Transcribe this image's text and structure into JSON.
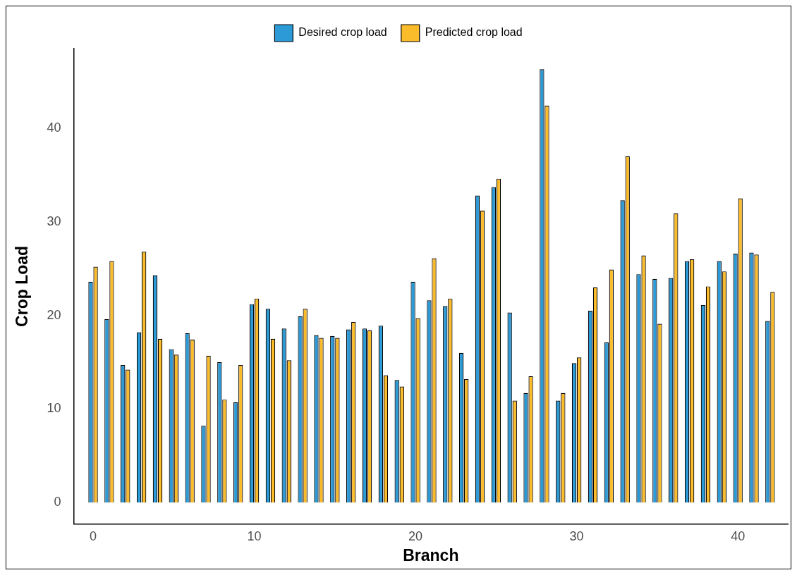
{
  "chart_data": {
    "type": "bar",
    "xlabel": "Branch",
    "ylabel": "Crop Load",
    "x": [
      0,
      1,
      2,
      3,
      4,
      5,
      6,
      7,
      8,
      9,
      10,
      11,
      12,
      13,
      14,
      15,
      16,
      17,
      18,
      19,
      20,
      21,
      22,
      23,
      24,
      25,
      26,
      27,
      28,
      29,
      30,
      31,
      32,
      33,
      34,
      35,
      36,
      37,
      38,
      39,
      40,
      41,
      42
    ],
    "series": [
      {
        "name": "Desired crop load",
        "color": "#2b9ad6",
        "values": [
          23.6,
          19.6,
          14.7,
          18.2,
          24.3,
          16.4,
          18.1,
          8.2,
          15.0,
          10.7,
          21.2,
          20.7,
          18.6,
          19.9,
          17.9,
          17.8,
          18.5,
          18.6,
          18.9,
          13.1,
          23.6,
          21.6,
          21.0,
          16.0,
          32.8,
          33.7,
          20.3,
          11.7,
          46.3,
          10.9,
          14.9,
          20.5,
          17.1,
          32.3,
          24.4,
          23.9,
          24.0,
          25.8,
          21.1,
          25.8,
          26.6,
          26.7,
          19.4
        ]
      },
      {
        "name": "Predicted crop load",
        "color": "#fbbc2c",
        "values": [
          25.2,
          25.8,
          14.2,
          26.8,
          17.5,
          15.8,
          17.4,
          15.7,
          11.0,
          14.7,
          21.8,
          17.5,
          15.2,
          20.7,
          17.6,
          17.6,
          19.3,
          18.4,
          13.6,
          12.4,
          19.7,
          26.1,
          21.8,
          13.2,
          31.2,
          34.6,
          10.9,
          13.5,
          42.4,
          11.7,
          15.5,
          23.0,
          24.9,
          37.0,
          26.4,
          19.1,
          30.9,
          26.0,
          23.1,
          24.7,
          32.5,
          26.5,
          22.5
        ]
      }
    ],
    "xlim": [
      -1.2,
      43.1
    ],
    "xticks": [
      0,
      10,
      20,
      30,
      40
    ],
    "ylim": [
      -2.3,
      48.5
    ],
    "yticks": [
      0,
      10,
      20,
      30,
      40
    ],
    "grid": false,
    "legend": "top"
  }
}
